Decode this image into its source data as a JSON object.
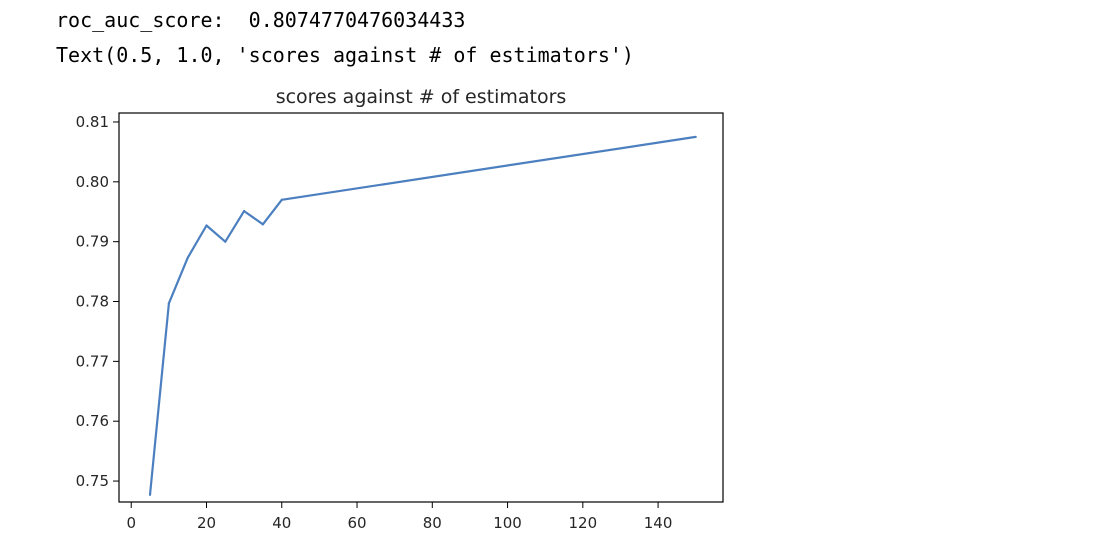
{
  "output": {
    "line1": "roc_auc_score:  0.8074770476034433",
    "line2": "Text(0.5, 1.0, 'scores against # of estimators')"
  },
  "chart_data": {
    "type": "line",
    "title": "scores against # of estimators",
    "xlabel": "",
    "ylabel": "",
    "xlim": [
      -3.25,
      157.25
    ],
    "ylim": [
      0.7465,
      0.8115
    ],
    "xticks": [
      0,
      20,
      40,
      60,
      80,
      100,
      120,
      140
    ],
    "yticks": [
      0.75,
      0.76,
      0.77,
      0.78,
      0.79,
      0.8,
      0.81
    ],
    "ytick_labels": [
      "0.75",
      "0.76",
      "0.77",
      "0.78",
      "0.79",
      "0.80",
      "0.81"
    ],
    "grid": false,
    "series": [
      {
        "color": "#4c7fbf",
        "x": [
          5,
          10,
          15,
          20,
          25,
          30,
          35,
          40,
          150
        ],
        "y": [
          0.7477,
          0.7797,
          0.7873,
          0.7927,
          0.79,
          0.7951,
          0.7929,
          0.797,
          0.8075
        ]
      }
    ]
  }
}
